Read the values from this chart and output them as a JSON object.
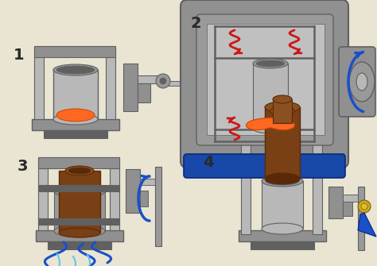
{
  "background_color": "#e9e5d2",
  "gray_frame": "#909090",
  "gray_light": "#b8b8b8",
  "gray_medium": "#999999",
  "gray_dark": "#606060",
  "gray_inner": "#c8c8c8",
  "orange_color": "#ff6820",
  "brown_color": "#7a4015",
  "brown_dark": "#5a2a08",
  "brown_light": "#8a5020",
  "blue_color": "#1a50c8",
  "light_blue": "#60c8e8",
  "red_color": "#cc1818",
  "gold_color": "#c8a820",
  "blue_oven": "#1848a8",
  "stage_numbers": [
    "1",
    "2",
    "3",
    "4"
  ]
}
